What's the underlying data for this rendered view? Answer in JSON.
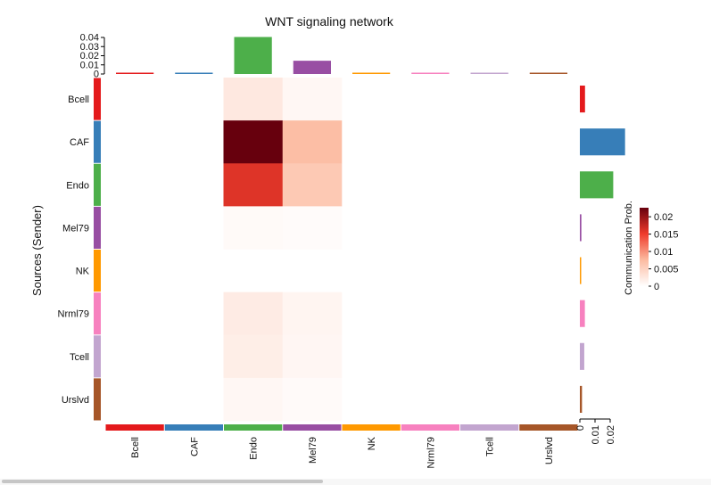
{
  "chart_data": {
    "type": "heatmap",
    "title": "WNT signaling network",
    "ylabel": "Sources (Sender)",
    "rows": [
      "Bcell",
      "CAF",
      "Endo",
      "Mel79",
      "NK",
      "Nrml79",
      "Tcell",
      "Urslvd"
    ],
    "columns": [
      "Bcell",
      "CAF",
      "Endo",
      "Mel79",
      "NK",
      "Nrml79",
      "Tcell",
      "Urslvd"
    ],
    "group_colors": [
      "#E41A1C",
      "#377EB8",
      "#4DAF4A",
      "#984EA3",
      "#FF9900",
      "#F781BF",
      "#C2A5CF",
      "#A65628"
    ],
    "matrix": [
      [
        null,
        null,
        0.0025,
        0.0009,
        null,
        null,
        null,
        null
      ],
      [
        null,
        null,
        0.0226,
        0.0072,
        null,
        null,
        null,
        null
      ],
      [
        null,
        null,
        0.016,
        0.006,
        null,
        null,
        null,
        null
      ],
      [
        null,
        null,
        0.0006,
        0.0004,
        null,
        null,
        null,
        null
      ],
      [
        null,
        null,
        null,
        null,
        null,
        null,
        null,
        null
      ],
      [
        null,
        null,
        0.0022,
        0.0011,
        null,
        null,
        null,
        null
      ],
      [
        null,
        null,
        0.0019,
        0.001,
        null,
        null,
        null,
        null
      ],
      [
        null,
        null,
        0.0009,
        0.0005,
        null,
        null,
        null,
        null
      ]
    ],
    "legend": {
      "title": "Communication Prob.",
      "ticks": [
        "0.02",
        "0.015",
        "0.01",
        "0.005",
        "0"
      ],
      "range": [
        0,
        0.0226
      ],
      "colors": [
        "#FFFFFF",
        "#FCBBA1",
        "#EF3B2C",
        "#67000D"
      ]
    },
    "top_bars": {
      "values": [
        0.0005,
        0.0003,
        0.0405,
        0.0145,
        0.0003,
        0.0003,
        0.0003,
        0.0003
      ],
      "ticks": [
        "0.04",
        "0.03",
        "0.02",
        "0.01",
        "0"
      ],
      "range": [
        0,
        0.04
      ]
    },
    "right_bars": {
      "values": [
        0.0034,
        0.0298,
        0.022,
        0.001,
        0.0003,
        0.0033,
        0.0029,
        0.0014
      ],
      "ticks": [
        "0",
        "0.01",
        "0.02"
      ],
      "range": [
        0,
        0.02
      ]
    }
  }
}
